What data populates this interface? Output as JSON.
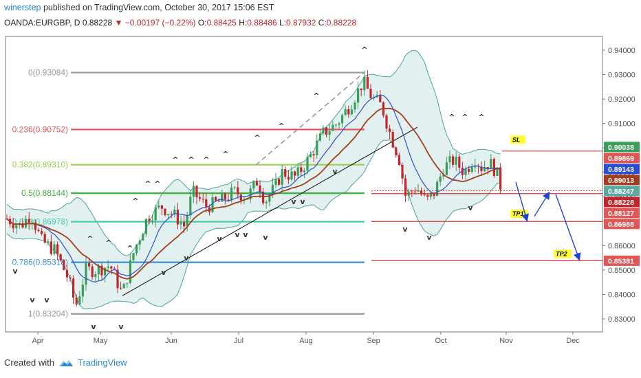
{
  "header": {
    "user": "winerstep",
    "published": "published on TradingView.com, October 30, 2017 15:06 EST",
    "symbol": "OANDA:EURGBP, D",
    "last": "0.88228",
    "change": "−0.00197 (−0.22%)",
    "o_label": "O:",
    "o": "0.88425",
    "h_label": "H:",
    "h": "0.88486",
    "l_label": "L:",
    "l": "0.87932",
    "c_label": "C:",
    "c": "0.88228"
  },
  "footer": {
    "created": "Created with",
    "brand": "TradingView"
  },
  "colors": {
    "up": "#3a9d5a",
    "down": "#c0262b",
    "bb": "#5aa9a2",
    "bbfill": "#dcecec",
    "ma_fast": "#2b4fd3",
    "ma_slow": "#a23d1e",
    "fib0": "#999999",
    "fib236": "#e05555",
    "fib382": "#9bd04a",
    "fib5": "#3ab03a",
    "fib618": "#44ccaa",
    "fib786": "#3b8fd8",
    "fib1": "#999999",
    "level": "#e03030",
    "arrow": "#1e45d0",
    "tagyellow": "#ffff33"
  },
  "chart_data": {
    "type": "candlestick",
    "yaxis_ticks": [
      "0.94000",
      "0.93000",
      "0.92000",
      "0.91000",
      "0.90000",
      "0.89000",
      "0.88000",
      "0.87000",
      "0.86000",
      "0.85000",
      "0.84000",
      "0.83000"
    ],
    "yaxis_values": [
      0.94,
      0.93,
      0.92,
      0.91,
      0.9,
      0.89,
      0.88,
      0.87,
      0.86,
      0.85,
      0.84,
      0.83
    ],
    "xaxis_ticks": [
      "Apr",
      "May",
      "Jun",
      "Jul",
      "Aug",
      "Sep",
      "Oct",
      "Nov",
      "Dec"
    ],
    "fib_levels": [
      {
        "label": "0(0.93084)",
        "value": 0.93084,
        "color": "#999999"
      },
      {
        "label": "0.236(0.90752)",
        "value": 0.90752,
        "color": "#e05555"
      },
      {
        "label": "0.382(0.89310)",
        "value": 0.8931,
        "color": "#9bd04a"
      },
      {
        "label": "0.5(0.88144)",
        "value": 0.88144,
        "color": "#3ab03a"
      },
      {
        "label": "0.618(0.86978)",
        "value": 0.86978,
        "color": "#44ccaa"
      },
      {
        "label": "0.786(0.85318)",
        "value": 0.85318,
        "color": "#3b8fd8"
      },
      {
        "label": "1(0.83204)",
        "value": 0.83204,
        "color": "#999999"
      }
    ],
    "price_tags": [
      {
        "label": "0.90038",
        "value": 0.90038,
        "color": "#3a9d5a"
      },
      {
        "label": "0.89869",
        "value": 0.89869,
        "color": "#e05555"
      },
      {
        "label": "0.89143",
        "value": 0.89143,
        "color": "#2b4fd3"
      },
      {
        "label": "0.89013",
        "value": 0.89013,
        "color": "#a23d1e"
      },
      {
        "label": "0.88247",
        "value": 0.88247,
        "color": "#5aa9a2"
      },
      {
        "label": "0.88228",
        "value": 0.88228,
        "color": "#c0262b"
      },
      {
        "label": "0.88127",
        "value": 0.88127,
        "color": "#e05555"
      },
      {
        "label": "0.86988",
        "value": 0.86988,
        "color": "#e05555"
      },
      {
        "label": "0.85381",
        "value": 0.85381,
        "color": "#e05555"
      }
    ],
    "trade_levels": [
      {
        "label": "SL",
        "value": 0.89869
      },
      {
        "label": "TP1",
        "value": 0.86988
      },
      {
        "label": "TP2",
        "value": 0.85381
      }
    ],
    "fractal_marks": {
      "up": "^",
      "down": "v"
    }
  }
}
